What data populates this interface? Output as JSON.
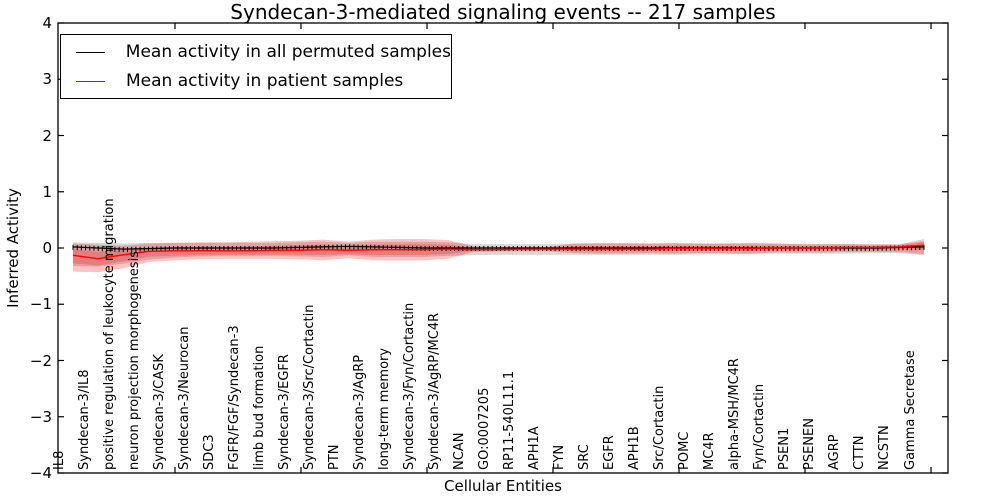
{
  "figure": {
    "title": "Syndecan-3-mediated signaling events -- 217 samples",
    "xlabel": "Cellular Entities",
    "ylabel": "Inferred Activity"
  },
  "legend": {
    "entries": [
      {
        "label": "Mean activity in all permuted samples",
        "color": "#000000"
      },
      {
        "label": "Mean activity in patient samples",
        "color": "#ff0000"
      }
    ]
  },
  "chart_data": {
    "type": "line",
    "title": "Syndecan-3-mediated signaling events -- 217 samples",
    "xlabel": "Cellular Entities",
    "ylabel": "Inferred Activity",
    "ylim": [
      -4,
      4
    ],
    "ytick_labels": [
      "−4",
      "−3",
      "−2",
      "−1",
      "0",
      "1",
      "2",
      "3",
      "4"
    ],
    "ytick_values": [
      -4,
      -3,
      -2,
      -1,
      0,
      1,
      2,
      3,
      4
    ],
    "grid": false,
    "legend_position": "upper left",
    "samples_note": "217 samples",
    "n_entity_tick_marks": 204,
    "categories": [
      "IL8",
      "Syndecan-3/IL8",
      "positive regulation of leukocyte migration",
      "neuron projection morphogenesis",
      "Syndecan-3/CASK",
      "Syndecan-3/Neurocan",
      "SDC3",
      "FGFR/FGF/Syndecan-3",
      "limb bud formation",
      "Syndecan-3/EGFR",
      "Syndecan-3/Src/Cortactin",
      "PTN",
      "Syndecan-3/AgRP",
      "long-term memory",
      "Syndecan-3/Fyn/Cortactin",
      "Syndecan-3/AgRP/MC4R",
      "NCAN",
      "GO:0007205",
      "RP11-540L11.1",
      "APH1A",
      "FYN",
      "SRC",
      "EGFR",
      "APH1B",
      "Src/Cortactin",
      "POMC",
      "MC4R",
      "alpha-MSH/MC4R",
      "Fyn/Cortactin",
      "PSEN1",
      "PSENEN",
      "AGRP",
      "CTTN",
      "NCSTN",
      "Gamma Secretase"
    ],
    "series": [
      {
        "name": "Mean activity in all permuted samples",
        "color": "#000000",
        "values": [
          0.02,
          0.0,
          -0.02,
          -0.01,
          0.0,
          0.0,
          0.0,
          0.0,
          0.0,
          0.01,
          0.02,
          0.03,
          0.02,
          0.01,
          0.0,
          0.0,
          0.0,
          0.0,
          0.0,
          0.0,
          0.0,
          0.0,
          0.0,
          0.0,
          0.0,
          0.0,
          0.0,
          0.0,
          0.0,
          0.0,
          0.0,
          0.0,
          0.0,
          0.01,
          0.02
        ]
      },
      {
        "name": "Mean activity in patient samples",
        "color": "#ff0000",
        "values": [
          -0.13,
          -0.19,
          -0.12,
          -0.06,
          -0.05,
          -0.05,
          -0.05,
          -0.05,
          -0.04,
          -0.04,
          -0.03,
          -0.04,
          -0.03,
          -0.03,
          -0.03,
          -0.02,
          -0.03,
          -0.03,
          -0.02,
          -0.02,
          -0.02,
          -0.02,
          -0.02,
          -0.02,
          -0.01,
          -0.01,
          -0.01,
          -0.01,
          0.0,
          0.0,
          0.0,
          0.01,
          0.01,
          0.02,
          0.05
        ]
      }
    ],
    "bands": [
      {
        "name": "permuted-samples-range",
        "color": "rgba(110,110,110,0.28)",
        "upper": [
          0.1,
          0.09,
          0.08,
          0.09,
          0.09,
          0.09,
          0.09,
          0.09,
          0.09,
          0.1,
          0.11,
          0.09,
          0.11,
          0.11,
          0.11,
          0.1,
          0.07,
          0.07,
          0.07,
          0.07,
          0.08,
          0.08,
          0.08,
          0.08,
          0.08,
          0.08,
          0.08,
          0.08,
          0.08,
          0.07,
          0.07,
          0.07,
          0.07,
          0.07,
          0.12
        ],
        "lower": [
          -0.32,
          -0.33,
          -0.28,
          -0.21,
          -0.17,
          -0.15,
          -0.14,
          -0.14,
          -0.14,
          -0.15,
          -0.16,
          -0.13,
          -0.16,
          -0.16,
          -0.16,
          -0.14,
          -0.13,
          -0.12,
          -0.12,
          -0.12,
          -0.12,
          -0.12,
          -0.12,
          -0.12,
          -0.12,
          -0.11,
          -0.11,
          -0.11,
          -0.1,
          -0.1,
          -0.1,
          -0.1,
          -0.09,
          -0.09,
          -0.13
        ]
      },
      {
        "name": "patient-samples-range-outer",
        "color": "rgba(255,0,0,0.24)",
        "upper": [
          0.08,
          0.06,
          0.04,
          0.08,
          0.09,
          0.1,
          0.1,
          0.11,
          0.12,
          0.13,
          0.15,
          0.11,
          0.15,
          0.16,
          0.16,
          0.14,
          0.03,
          0.02,
          0.02,
          0.02,
          0.08,
          0.09,
          0.09,
          0.08,
          0.09,
          0.08,
          0.08,
          0.09,
          0.08,
          0.07,
          0.07,
          0.07,
          0.06,
          0.06,
          0.16
        ],
        "lower": [
          -0.42,
          -0.43,
          -0.36,
          -0.25,
          -0.22,
          -0.2,
          -0.19,
          -0.19,
          -0.19,
          -0.2,
          -0.22,
          -0.18,
          -0.22,
          -0.22,
          -0.22,
          -0.19,
          -0.07,
          -0.06,
          -0.06,
          -0.06,
          -0.09,
          -0.1,
          -0.1,
          -0.09,
          -0.1,
          -0.09,
          -0.09,
          -0.1,
          -0.08,
          -0.08,
          -0.08,
          -0.07,
          -0.07,
          -0.07,
          -0.11
        ]
      },
      {
        "name": "patient-samples-range-inner",
        "color": "rgba(255,0,0,0.24)",
        "inner_scale_of": "patient-samples-range-outer",
        "inner_scale": 0.5
      }
    ]
  }
}
